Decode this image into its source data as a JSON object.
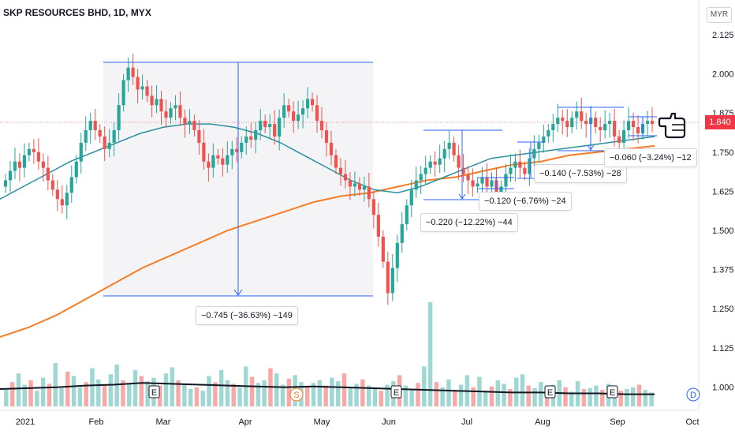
{
  "chart_data": {
    "type": "candlestick",
    "title": "SKP RESOURCES BHD, 1D, MYX",
    "currency": "MYR",
    "last_price": "1.840",
    "y_ticks": [
      "2.125",
      "2.000",
      "1.875",
      "1.750",
      "1.625",
      "1.500",
      "1.375",
      "1.250",
      "1.125",
      "1.000"
    ],
    "x_ticks": [
      "2021",
      "Feb",
      "Mar",
      "Apr",
      "May",
      "Jun",
      "Jul",
      "Aug",
      "Sep",
      "Oct"
    ],
    "ylim": [
      0.94,
      2.18
    ],
    "close_series": [
      1.66,
      1.69,
      1.72,
      1.7,
      1.74,
      1.76,
      1.75,
      1.72,
      1.7,
      1.66,
      1.63,
      1.6,
      1.58,
      1.62,
      1.67,
      1.72,
      1.78,
      1.82,
      1.85,
      1.82,
      1.8,
      1.76,
      1.78,
      1.82,
      1.9,
      1.98,
      2.02,
      1.99,
      1.95,
      1.96,
      1.93,
      1.9,
      1.92,
      1.88,
      1.86,
      1.89,
      1.9,
      1.86,
      1.84,
      1.85,
      1.82,
      1.78,
      1.72,
      1.7,
      1.74,
      1.73,
      1.71,
      1.74,
      1.76,
      1.75,
      1.78,
      1.8,
      1.79,
      1.82,
      1.85,
      1.83,
      1.84,
      1.8,
      1.86,
      1.9,
      1.88,
      1.85,
      1.87,
      1.89,
      1.92,
      1.9,
      1.85,
      1.82,
      1.78,
      1.74,
      1.7,
      1.68,
      1.66,
      1.64,
      1.65,
      1.63,
      1.64,
      1.6,
      1.55,
      1.48,
      1.4,
      1.3,
      1.38,
      1.46,
      1.52,
      1.58,
      1.63,
      1.66,
      1.68,
      1.7,
      1.72,
      1.71,
      1.73,
      1.76,
      1.78,
      1.74,
      1.7,
      1.68,
      1.66,
      1.64,
      1.65,
      1.67,
      1.64,
      1.66,
      1.62,
      1.64,
      1.68,
      1.7,
      1.72,
      1.7,
      1.68,
      1.73,
      1.76,
      1.78,
      1.8,
      1.82,
      1.84,
      1.86,
      1.85,
      1.83,
      1.86,
      1.88,
      1.85,
      1.84,
      1.86,
      1.83,
      1.82,
      1.84,
      1.85,
      1.8,
      1.78,
      1.82,
      1.85,
      1.83,
      1.81,
      1.84,
      1.85,
      1.84
    ],
    "ma50_series": [
      1.6,
      1.64,
      1.68,
      1.72,
      1.75,
      1.78,
      1.81,
      1.83,
      1.84,
      1.84,
      1.83,
      1.81,
      1.78,
      1.74,
      1.7,
      1.66,
      1.63,
      1.62,
      1.64,
      1.67,
      1.7,
      1.73,
      1.74,
      1.75,
      1.76,
      1.77,
      1.78,
      1.79,
      1.8
    ],
    "ma200_series": [
      1.16,
      1.19,
      1.23,
      1.28,
      1.33,
      1.38,
      1.42,
      1.46,
      1.5,
      1.53,
      1.56,
      1.59,
      1.61,
      1.62,
      1.64,
      1.66,
      1.67,
      1.69,
      1.71,
      1.72,
      1.74,
      1.75,
      1.76,
      1.77
    ],
    "volume_series": [
      20,
      28,
      38,
      25,
      30,
      18,
      33,
      26,
      50,
      21,
      40,
      35,
      22,
      28,
      44,
      31,
      25,
      37,
      48,
      30,
      27,
      42,
      35,
      29,
      33,
      24,
      38,
      45,
      30,
      26,
      20,
      22,
      18,
      35,
      28,
      42,
      30,
      26,
      22,
      46,
      34,
      27,
      30,
      44,
      38,
      25,
      32,
      36,
      28,
      22,
      27,
      30,
      24,
      33,
      29,
      38,
      21,
      26,
      31,
      24,
      22,
      18,
      25,
      29,
      36,
      24,
      19,
      27,
      46,
      120,
      28,
      22,
      31,
      19,
      25,
      36,
      22,
      34,
      18,
      23,
      30,
      26,
      20,
      33,
      37,
      24,
      21,
      28,
      19,
      25,
      30,
      22,
      17,
      29,
      20,
      21,
      24,
      19,
      26,
      23,
      18,
      20,
      22,
      25,
      19,
      16
    ],
    "volume_avg_series": [
      20,
      21,
      22,
      24,
      25,
      27,
      26,
      25,
      24,
      23,
      22,
      23,
      22,
      21,
      20,
      19,
      18,
      17,
      16,
      16,
      15,
      15,
      14,
      14
    ],
    "earnings_markers": [
      "E",
      "S",
      "E",
      "E",
      "E"
    ],
    "dividend_marker": "D",
    "measurements": [
      {
        "label": "−0.745 (−36.63%) −149"
      },
      {
        "label": "−0.220 (−12.22%) −44"
      },
      {
        "label": "−0.120 (−6.76%) −24"
      },
      {
        "label": "−0.140 (−7.53%) −28"
      },
      {
        "label": "−0.060 (−3.24%) −12"
      }
    ]
  }
}
